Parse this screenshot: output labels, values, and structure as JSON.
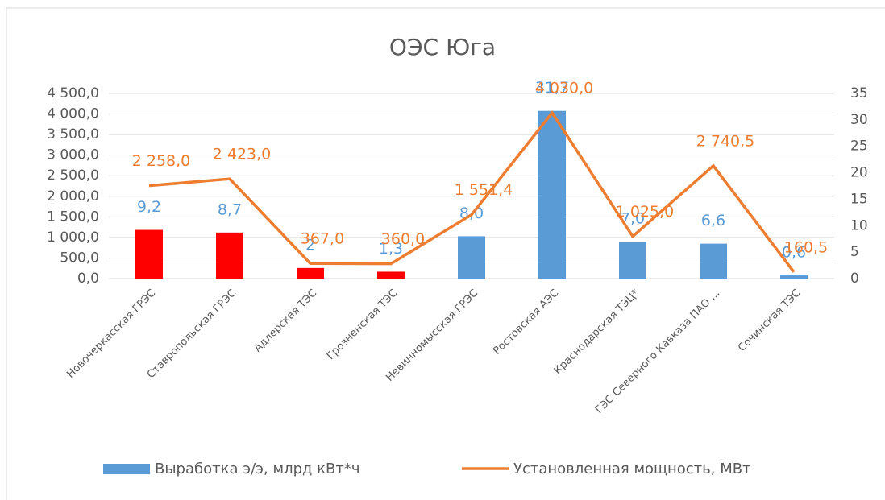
{
  "chart_data": {
    "type": "bar_line",
    "title": "ОЭС Юга",
    "categories": [
      "Новочеркасская ГРЭС",
      "Ставропольская ГРЭС",
      "Адлерская ТЭС",
      "Грозненская ТЭС",
      "Невинномысская ГРЭС",
      "Ростовская АЭС",
      "Краснодарская ТЭЦ*",
      "ГЭС Северного Кавказа ПАО ...",
      "Сочинская ТЭС"
    ],
    "series": [
      {
        "name": "Выработка э/э, млрд кВт*ч",
        "type": "bar",
        "axis": "y2",
        "color": "#5b9bd5",
        "colors": [
          "#ff0000",
          "#ff0000",
          "#ff0000",
          "#ff0000",
          "#5b9bd5",
          "#5b9bd5",
          "#5b9bd5",
          "#5b9bd5",
          "#5b9bd5"
        ],
        "values": [
          9.2,
          8.7,
          2,
          1.3,
          8.0,
          31.7,
          7.0,
          6.6,
          0.6
        ],
        "value_labels": [
          "9,2",
          "8,7",
          "2",
          "1,3",
          "8,0",
          "31,7",
          "7,0",
          "6,6",
          "0,6"
        ]
      },
      {
        "name": "Установленная мощность, МВт",
        "type": "line",
        "axis": "y",
        "color": "#ed7d31",
        "values": [
          2258.0,
          2423.0,
          367.0,
          360.0,
          1551.4,
          4030.0,
          1025.0,
          2740.5,
          160.5
        ],
        "value_labels": [
          "2 258,0",
          "2 423,0",
          "367,0",
          "360,0",
          "1 551,4",
          "4 030,0",
          "1 025,0",
          "2 740,5",
          "160,5"
        ]
      }
    ],
    "ylim": [
      0,
      4500
    ],
    "yticks": [
      {
        "value": 0,
        "label": "0,0"
      },
      {
        "value": 500,
        "label": "500,0"
      },
      {
        "value": 1000,
        "label": "1 000,0"
      },
      {
        "value": 1500,
        "label": "1 500,0"
      },
      {
        "value": 2000,
        "label": "2 000,0"
      },
      {
        "value": 2500,
        "label": "2 500,0"
      },
      {
        "value": 3000,
        "label": "3 000,0"
      },
      {
        "value": 3500,
        "label": "3 500,0"
      },
      {
        "value": 4000,
        "label": "4 000,0"
      },
      {
        "value": 4500,
        "label": "4 500,0"
      }
    ],
    "y2lim": [
      0,
      35
    ],
    "y2ticks": [
      0,
      5,
      10,
      15,
      20,
      25,
      30,
      35
    ],
    "grid": true,
    "legend": "bottom"
  }
}
